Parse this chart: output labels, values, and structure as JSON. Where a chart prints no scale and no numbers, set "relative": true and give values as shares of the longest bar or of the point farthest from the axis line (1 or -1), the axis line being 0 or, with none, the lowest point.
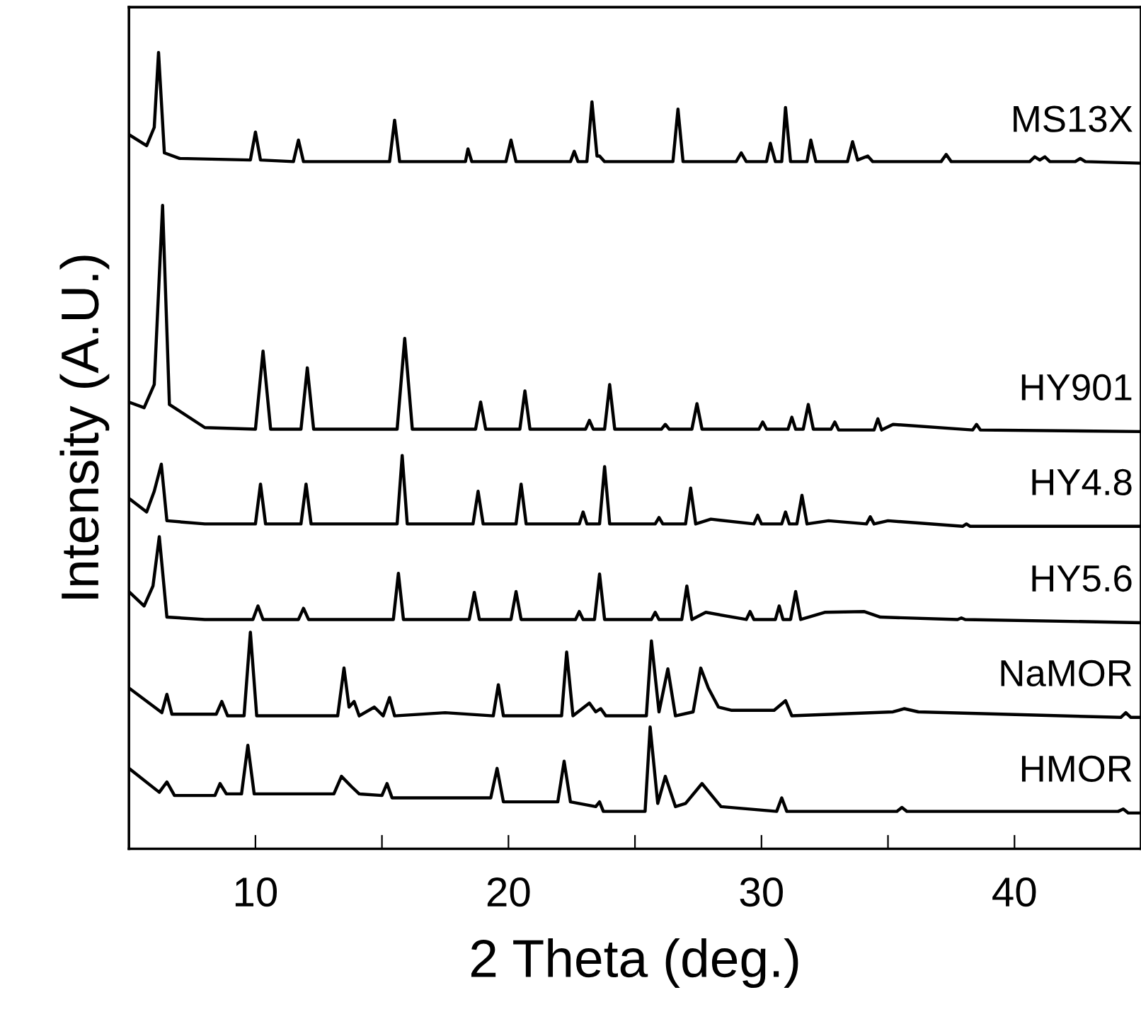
{
  "chart_data": {
    "type": "line",
    "relative": true,
    "xlabel": "2 Theta (deg.)",
    "ylabel": "Intensity (A.U.)",
    "xlim": [
      5,
      45
    ],
    "xticks": [
      10,
      {
        "value": 15,
        "label": null
      },
      20,
      {
        "value": 25,
        "label": null
      },
      30,
      {
        "value": 35,
        "label": null
      },
      40
    ],
    "grid": false,
    "legend": false,
    "marker": "none",
    "line_style": "solid",
    "series": [
      {
        "name": "MS13X",
        "color": "#000000",
        "x": [
          5.0,
          5.7,
          6.0,
          6.17,
          6.4,
          7.0,
          9.8,
          10.0,
          10.2,
          11.5,
          11.7,
          11.9,
          15.3,
          15.5,
          15.7,
          18.3,
          18.4,
          18.55,
          19.9,
          20.1,
          20.3,
          22.45,
          22.6,
          22.75,
          23.1,
          23.3,
          23.5,
          23.6,
          23.8,
          26.5,
          26.7,
          26.9,
          29.0,
          29.2,
          29.4,
          30.2,
          30.35,
          30.55,
          30.8,
          30.95,
          31.15,
          31.8,
          31.95,
          32.15,
          33.4,
          33.6,
          33.8,
          34.2,
          34.4,
          37.1,
          37.3,
          37.5,
          40.6,
          40.8,
          41.0,
          41.2,
          41.4,
          42.4,
          42.6,
          42.8,
          45.0
        ],
        "values": [
          0.897,
          0.883,
          0.906,
          1.0,
          0.874,
          0.867,
          0.865,
          0.9,
          0.865,
          0.863,
          0.89,
          0.863,
          0.863,
          0.915,
          0.863,
          0.863,
          0.879,
          0.863,
          0.863,
          0.89,
          0.863,
          0.863,
          0.876,
          0.863,
          0.863,
          0.938,
          0.87,
          0.87,
          0.863,
          0.863,
          0.929,
          0.863,
          0.863,
          0.874,
          0.863,
          0.863,
          0.886,
          0.863,
          0.863,
          0.931,
          0.863,
          0.863,
          0.89,
          0.863,
          0.863,
          0.888,
          0.865,
          0.87,
          0.863,
          0.863,
          0.872,
          0.863,
          0.863,
          0.869,
          0.865,
          0.869,
          0.863,
          0.863,
          0.867,
          0.863,
          0.861
        ]
      },
      {
        "name": "HY901",
        "color": "#000000",
        "x": [
          5.0,
          5.6,
          6.0,
          6.33,
          6.6,
          8.0,
          10.0,
          10.3,
          10.6,
          11.8,
          12.05,
          12.3,
          15.6,
          15.9,
          16.2,
          18.7,
          18.9,
          19.1,
          20.45,
          20.65,
          20.85,
          23.05,
          23.2,
          23.35,
          23.8,
          24.0,
          24.2,
          26.05,
          26.2,
          26.35,
          27.25,
          27.45,
          27.65,
          29.9,
          30.05,
          30.2,
          31.05,
          31.2,
          31.35,
          31.65,
          31.85,
          32.05,
          32.75,
          32.9,
          33.05,
          34.45,
          34.6,
          34.75,
          35.2,
          38.35,
          38.5,
          38.65,
          45.0
        ],
        "values": [
          0.561,
          0.554,
          0.583,
          0.808,
          0.558,
          0.529,
          0.527,
          0.625,
          0.527,
          0.527,
          0.604,
          0.527,
          0.527,
          0.641,
          0.527,
          0.527,
          0.561,
          0.527,
          0.527,
          0.575,
          0.527,
          0.527,
          0.538,
          0.527,
          0.527,
          0.583,
          0.527,
          0.527,
          0.533,
          0.527,
          0.527,
          0.559,
          0.527,
          0.527,
          0.536,
          0.527,
          0.527,
          0.542,
          0.527,
          0.527,
          0.558,
          0.527,
          0.527,
          0.536,
          0.526,
          0.526,
          0.54,
          0.526,
          0.533,
          0.526,
          0.533,
          0.526,
          0.524
        ]
      },
      {
        "name": "HY4.8",
        "color": "#000000",
        "x": [
          5.0,
          5.7,
          6.0,
          6.28,
          6.5,
          8.0,
          10.0,
          10.2,
          10.4,
          11.8,
          12.0,
          12.2,
          15.6,
          15.8,
          16.0,
          18.6,
          18.8,
          19.0,
          20.3,
          20.5,
          20.7,
          22.8,
          22.95,
          23.1,
          23.6,
          23.8,
          24.0,
          25.8,
          25.95,
          26.1,
          27.0,
          27.2,
          27.4,
          28.0,
          29.7,
          29.85,
          30.0,
          30.8,
          30.95,
          31.1,
          31.4,
          31.6,
          31.8,
          32.65,
          34.15,
          34.3,
          34.45,
          35.0,
          37.95,
          38.1,
          38.25,
          45.0
        ],
        "values": [
          0.44,
          0.423,
          0.449,
          0.483,
          0.412,
          0.408,
          0.408,
          0.458,
          0.408,
          0.408,
          0.458,
          0.408,
          0.408,
          0.494,
          0.408,
          0.408,
          0.449,
          0.408,
          0.408,
          0.458,
          0.408,
          0.408,
          0.423,
          0.408,
          0.408,
          0.48,
          0.408,
          0.408,
          0.416,
          0.408,
          0.408,
          0.453,
          0.408,
          0.414,
          0.408,
          0.419,
          0.408,
          0.408,
          0.423,
          0.408,
          0.408,
          0.444,
          0.408,
          0.412,
          0.408,
          0.417,
          0.408,
          0.412,
          0.405,
          0.408,
          0.405,
          0.405
        ]
      },
      {
        "name": "HY5.6",
        "color": "#000000",
        "x": [
          5.0,
          5.6,
          5.95,
          6.2,
          6.5,
          8.0,
          9.9,
          10.1,
          10.3,
          11.7,
          11.9,
          12.1,
          15.45,
          15.65,
          15.85,
          18.45,
          18.65,
          18.85,
          20.1,
          20.3,
          20.5,
          22.65,
          22.8,
          22.95,
          23.4,
          23.6,
          23.8,
          25.65,
          25.8,
          25.95,
          26.85,
          27.05,
          27.25,
          27.8,
          29.4,
          29.55,
          29.7,
          30.55,
          30.7,
          30.85,
          31.15,
          31.35,
          31.55,
          32.5,
          34.05,
          34.7,
          37.75,
          37.9,
          38.05,
          45.0
        ],
        "values": [
          0.323,
          0.305,
          0.33,
          0.392,
          0.291,
          0.288,
          0.288,
          0.305,
          0.288,
          0.288,
          0.302,
          0.288,
          0.288,
          0.346,
          0.288,
          0.288,
          0.322,
          0.288,
          0.288,
          0.323,
          0.288,
          0.288,
          0.298,
          0.288,
          0.288,
          0.345,
          0.288,
          0.288,
          0.297,
          0.288,
          0.288,
          0.33,
          0.288,
          0.297,
          0.288,
          0.298,
          0.288,
          0.288,
          0.305,
          0.288,
          0.288,
          0.323,
          0.288,
          0.297,
          0.298,
          0.291,
          0.288,
          0.29,
          0.288,
          0.284
        ]
      },
      {
        "name": "NaMOR",
        "color": "#000000",
        "x": [
          5.0,
          6.3,
          6.5,
          6.7,
          8.45,
          8.67,
          8.9,
          9.55,
          9.8,
          10.05,
          13.25,
          13.5,
          13.7,
          13.9,
          14.1,
          14.7,
          15.05,
          15.3,
          15.5,
          17.5,
          19.4,
          19.6,
          19.8,
          22.1,
          22.3,
          22.55,
          23.2,
          23.45,
          23.65,
          23.85,
          25.45,
          25.65,
          25.95,
          26.3,
          26.6,
          27.3,
          27.6,
          27.9,
          28.3,
          28.8,
          30.5,
          30.95,
          31.2,
          35.2,
          35.65,
          36.2,
          44.2,
          44.4,
          44.6,
          45.0
        ],
        "values": [
          0.202,
          0.171,
          0.194,
          0.169,
          0.169,
          0.185,
          0.167,
          0.167,
          0.272,
          0.167,
          0.167,
          0.227,
          0.178,
          0.185,
          0.167,
          0.178,
          0.167,
          0.19,
          0.167,
          0.171,
          0.167,
          0.206,
          0.167,
          0.167,
          0.247,
          0.167,
          0.183,
          0.172,
          0.176,
          0.167,
          0.167,
          0.261,
          0.172,
          0.226,
          0.167,
          0.172,
          0.227,
          0.202,
          0.178,
          0.174,
          0.174,
          0.186,
          0.167,
          0.172,
          0.176,
          0.172,
          0.165,
          0.171,
          0.165,
          0.165
        ]
      },
      {
        "name": "HMOR",
        "color": "#000000",
        "x": [
          5.0,
          6.2,
          6.5,
          6.8,
          8.4,
          8.6,
          8.85,
          9.45,
          9.7,
          9.95,
          13.1,
          13.4,
          13.8,
          14.1,
          15.0,
          15.2,
          15.4,
          19.3,
          19.55,
          19.8,
          21.95,
          22.2,
          22.45,
          23.45,
          23.6,
          23.75,
          25.4,
          25.6,
          25.9,
          26.2,
          26.6,
          27.0,
          27.65,
          28.4,
          30.6,
          30.8,
          31.0,
          35.35,
          35.55,
          35.75,
          44.1,
          44.3,
          44.5,
          45.0
        ],
        "values": [
          0.101,
          0.071,
          0.084,
          0.067,
          0.067,
          0.082,
          0.069,
          0.069,
          0.13,
          0.069,
          0.069,
          0.091,
          0.078,
          0.069,
          0.067,
          0.082,
          0.064,
          0.064,
          0.101,
          0.059,
          0.059,
          0.11,
          0.059,
          0.053,
          0.059,
          0.047,
          0.047,
          0.153,
          0.057,
          0.091,
          0.053,
          0.057,
          0.082,
          0.053,
          0.047,
          0.064,
          0.047,
          0.047,
          0.052,
          0.047,
          0.047,
          0.05,
          0.045,
          0.045
        ]
      }
    ]
  }
}
